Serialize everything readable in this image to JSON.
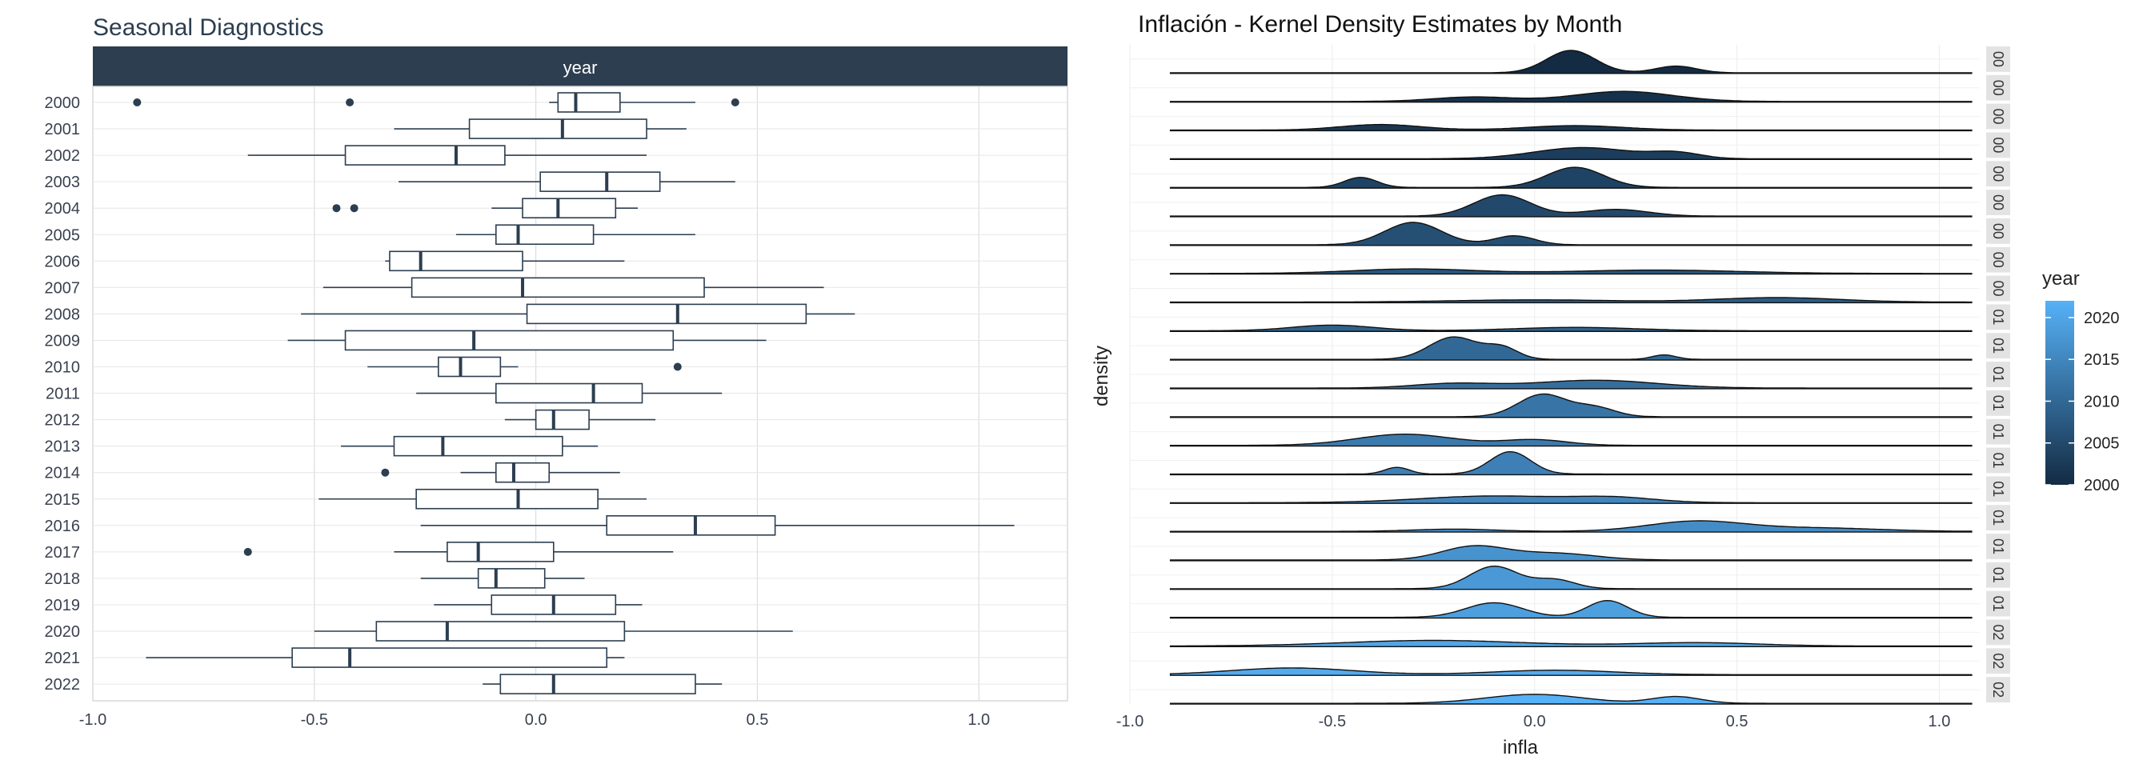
{
  "chart_data": [
    {
      "type": "boxplot",
      "orientation": "horizontal",
      "title": "Seasonal Diagnostics",
      "facet_strip": "year",
      "xlim": [
        -1.0,
        1.2
      ],
      "x_ticks": [
        "-1.0",
        "-0.5",
        "0.0",
        "0.5",
        "1.0"
      ],
      "x_tick_values": [
        -1.0,
        -0.5,
        0.0,
        0.5,
        1.0
      ],
      "grid": true,
      "color": "#2c3e50",
      "categories": [
        "2000",
        "2001",
        "2002",
        "2003",
        "2004",
        "2005",
        "2006",
        "2007",
        "2008",
        "2009",
        "2010",
        "2011",
        "2012",
        "2013",
        "2014",
        "2015",
        "2016",
        "2017",
        "2018",
        "2019",
        "2020",
        "2021",
        "2022"
      ],
      "boxes": [
        {
          "whisker_low": 0.03,
          "q1": 0.05,
          "median": 0.09,
          "q3": 0.19,
          "whisker_high": 0.36,
          "outliers": [
            -0.9,
            -0.42,
            0.45
          ]
        },
        {
          "whisker_low": -0.32,
          "q1": -0.15,
          "median": 0.06,
          "q3": 0.25,
          "whisker_high": 0.34,
          "outliers": []
        },
        {
          "whisker_low": -0.65,
          "q1": -0.43,
          "median": -0.18,
          "q3": -0.07,
          "whisker_high": 0.25,
          "outliers": []
        },
        {
          "whisker_low": -0.31,
          "q1": 0.01,
          "median": 0.16,
          "q3": 0.28,
          "whisker_high": 0.45,
          "outliers": []
        },
        {
          "whisker_low": -0.1,
          "q1": -0.03,
          "median": 0.05,
          "q3": 0.18,
          "whisker_high": 0.23,
          "outliers": [
            -0.45,
            -0.41
          ]
        },
        {
          "whisker_low": -0.18,
          "q1": -0.09,
          "median": -0.04,
          "q3": 0.13,
          "whisker_high": 0.36,
          "outliers": []
        },
        {
          "whisker_low": -0.34,
          "q1": -0.33,
          "median": -0.26,
          "q3": -0.03,
          "whisker_high": 0.2,
          "outliers": []
        },
        {
          "whisker_low": -0.48,
          "q1": -0.28,
          "median": -0.03,
          "q3": 0.38,
          "whisker_high": 0.65,
          "outliers": []
        },
        {
          "whisker_low": -0.53,
          "q1": -0.02,
          "median": 0.32,
          "q3": 0.61,
          "whisker_high": 0.72,
          "outliers": []
        },
        {
          "whisker_low": -0.56,
          "q1": -0.43,
          "median": -0.14,
          "q3": 0.31,
          "whisker_high": 0.52,
          "outliers": []
        },
        {
          "whisker_low": -0.38,
          "q1": -0.22,
          "median": -0.17,
          "q3": -0.08,
          "whisker_high": -0.04,
          "outliers": [
            0.32
          ]
        },
        {
          "whisker_low": -0.27,
          "q1": -0.09,
          "median": 0.13,
          "q3": 0.24,
          "whisker_high": 0.42,
          "outliers": []
        },
        {
          "whisker_low": -0.07,
          "q1": 0.0,
          "median": 0.04,
          "q3": 0.12,
          "whisker_high": 0.27,
          "outliers": []
        },
        {
          "whisker_low": -0.44,
          "q1": -0.32,
          "median": -0.21,
          "q3": 0.06,
          "whisker_high": 0.14,
          "outliers": []
        },
        {
          "whisker_low": -0.17,
          "q1": -0.09,
          "median": -0.05,
          "q3": 0.03,
          "whisker_high": 0.19,
          "outliers": [
            -0.34
          ]
        },
        {
          "whisker_low": -0.49,
          "q1": -0.27,
          "median": -0.04,
          "q3": 0.14,
          "whisker_high": 0.25,
          "outliers": []
        },
        {
          "whisker_low": -0.26,
          "q1": 0.16,
          "median": 0.36,
          "q3": 0.54,
          "whisker_high": 1.08,
          "outliers": []
        },
        {
          "whisker_low": -0.32,
          "q1": -0.2,
          "median": -0.13,
          "q3": 0.04,
          "whisker_high": 0.31,
          "outliers": [
            -0.65
          ]
        },
        {
          "whisker_low": -0.26,
          "q1": -0.13,
          "median": -0.09,
          "q3": 0.02,
          "whisker_high": 0.11,
          "outliers": []
        },
        {
          "whisker_low": -0.23,
          "q1": -0.1,
          "median": 0.04,
          "q3": 0.18,
          "whisker_high": 0.24,
          "outliers": []
        },
        {
          "whisker_low": -0.5,
          "q1": -0.36,
          "median": -0.2,
          "q3": 0.2,
          "whisker_high": 0.58,
          "outliers": []
        },
        {
          "whisker_low": -0.88,
          "q1": -0.55,
          "median": -0.42,
          "q3": 0.16,
          "whisker_high": 0.2,
          "outliers": []
        },
        {
          "whisker_low": -0.12,
          "q1": -0.08,
          "median": 0.04,
          "q3": 0.36,
          "whisker_high": 0.42,
          "outliers": []
        }
      ]
    },
    {
      "type": "ridgeline",
      "title": "Inflación - Kernel Density Estimates by Month",
      "xlabel": "infla",
      "ylabel": "density",
      "xlim": [
        -1.0,
        1.1
      ],
      "x_ticks": [
        "-1.0",
        "-0.5",
        "0.0",
        "0.5",
        "1.0"
      ],
      "x_tick_values": [
        -1.0,
        -0.5,
        0.0,
        0.5,
        1.0
      ],
      "legend_title": "year",
      "legend_placement": "right",
      "legend_ticks": [
        "2020",
        "2015",
        "2010",
        "2005",
        "2000"
      ],
      "legend_tick_values": [
        2020,
        2015,
        2010,
        2005,
        2000
      ],
      "color_low": "#132b43",
      "color_high": "#56b1f7",
      "facet_labels": [
        "00",
        "00",
        "00",
        "00",
        "00",
        "00",
        "00",
        "00",
        "00",
        "01",
        "01",
        "01",
        "01",
        "01",
        "01",
        "01",
        "01",
        "01",
        "01",
        "01",
        "02",
        "02",
        "02"
      ],
      "ridges": [
        {
          "year": 2000,
          "peaks": [
            [
              0.09,
              0.06,
              1.0
            ],
            [
              0.35,
              0.05,
              0.3
            ]
          ]
        },
        {
          "year": 2001,
          "peaks": [
            [
              0.22,
              0.12,
              0.45
            ],
            [
              -0.15,
              0.1,
              0.2
            ]
          ]
        },
        {
          "year": 2002,
          "peaks": [
            [
              -0.38,
              0.1,
              0.25
            ],
            [
              0.1,
              0.12,
              0.2
            ]
          ]
        },
        {
          "year": 2003,
          "peaks": [
            [
              0.12,
              0.12,
              0.5
            ],
            [
              0.35,
              0.06,
              0.25
            ]
          ]
        },
        {
          "year": 2004,
          "peaks": [
            [
              0.1,
              0.07,
              0.9
            ],
            [
              -0.43,
              0.04,
              0.45
            ]
          ]
        },
        {
          "year": 2005,
          "peaks": [
            [
              -0.08,
              0.07,
              0.95
            ],
            [
              0.2,
              0.08,
              0.3
            ]
          ]
        },
        {
          "year": 2006,
          "peaks": [
            [
              -0.3,
              0.07,
              1.0
            ],
            [
              -0.05,
              0.05,
              0.4
            ]
          ]
        },
        {
          "year": 2007,
          "peaks": [
            [
              -0.3,
              0.15,
              0.2
            ],
            [
              0.3,
              0.2,
              0.15
            ]
          ]
        },
        {
          "year": 2008,
          "peaks": [
            [
              0.6,
              0.15,
              0.2
            ],
            [
              0.0,
              0.2,
              0.1
            ]
          ]
        },
        {
          "year": 2009,
          "peaks": [
            [
              -0.5,
              0.1,
              0.25
            ],
            [
              0.1,
              0.15,
              0.15
            ]
          ]
        },
        {
          "year": 2010,
          "peaks": [
            [
              -0.2,
              0.06,
              1.0
            ],
            [
              -0.08,
              0.04,
              0.5
            ],
            [
              0.32,
              0.03,
              0.2
            ]
          ]
        },
        {
          "year": 2011,
          "peaks": [
            [
              0.15,
              0.15,
              0.35
            ],
            [
              -0.2,
              0.1,
              0.2
            ]
          ]
        },
        {
          "year": 2012,
          "peaks": [
            [
              0.02,
              0.06,
              1.0
            ],
            [
              0.15,
              0.05,
              0.4
            ]
          ]
        },
        {
          "year": 2013,
          "peaks": [
            [
              -0.32,
              0.12,
              0.5
            ],
            [
              0.0,
              0.08,
              0.25
            ]
          ]
        },
        {
          "year": 2014,
          "peaks": [
            [
              -0.06,
              0.05,
              1.0
            ],
            [
              -0.34,
              0.03,
              0.3
            ]
          ]
        },
        {
          "year": 2015,
          "peaks": [
            [
              -0.1,
              0.18,
              0.3
            ],
            [
              0.2,
              0.1,
              0.2
            ]
          ]
        },
        {
          "year": 2016,
          "peaks": [
            [
              0.4,
              0.12,
              0.45
            ],
            [
              0.7,
              0.15,
              0.15
            ],
            [
              -0.2,
              0.1,
              0.1
            ]
          ]
        },
        {
          "year": 2017,
          "peaks": [
            [
              -0.15,
              0.08,
              0.6
            ],
            [
              0.05,
              0.1,
              0.3
            ]
          ]
        },
        {
          "year": 2018,
          "peaks": [
            [
              -0.1,
              0.06,
              1.0
            ],
            [
              0.05,
              0.05,
              0.4
            ]
          ]
        },
        {
          "year": 2019,
          "peaks": [
            [
              -0.1,
              0.07,
              0.65
            ],
            [
              0.18,
              0.05,
              0.75
            ]
          ]
        },
        {
          "year": 2020,
          "peaks": [
            [
              -0.25,
              0.22,
              0.25
            ],
            [
              0.4,
              0.15,
              0.15
            ]
          ]
        },
        {
          "year": 2021,
          "peaks": [
            [
              -0.6,
              0.15,
              0.3
            ],
            [
              0.05,
              0.15,
              0.2
            ]
          ]
        },
        {
          "year": 2022,
          "peaks": [
            [
              0.0,
              0.12,
              0.4
            ],
            [
              0.35,
              0.06,
              0.3
            ]
          ]
        }
      ]
    }
  ]
}
